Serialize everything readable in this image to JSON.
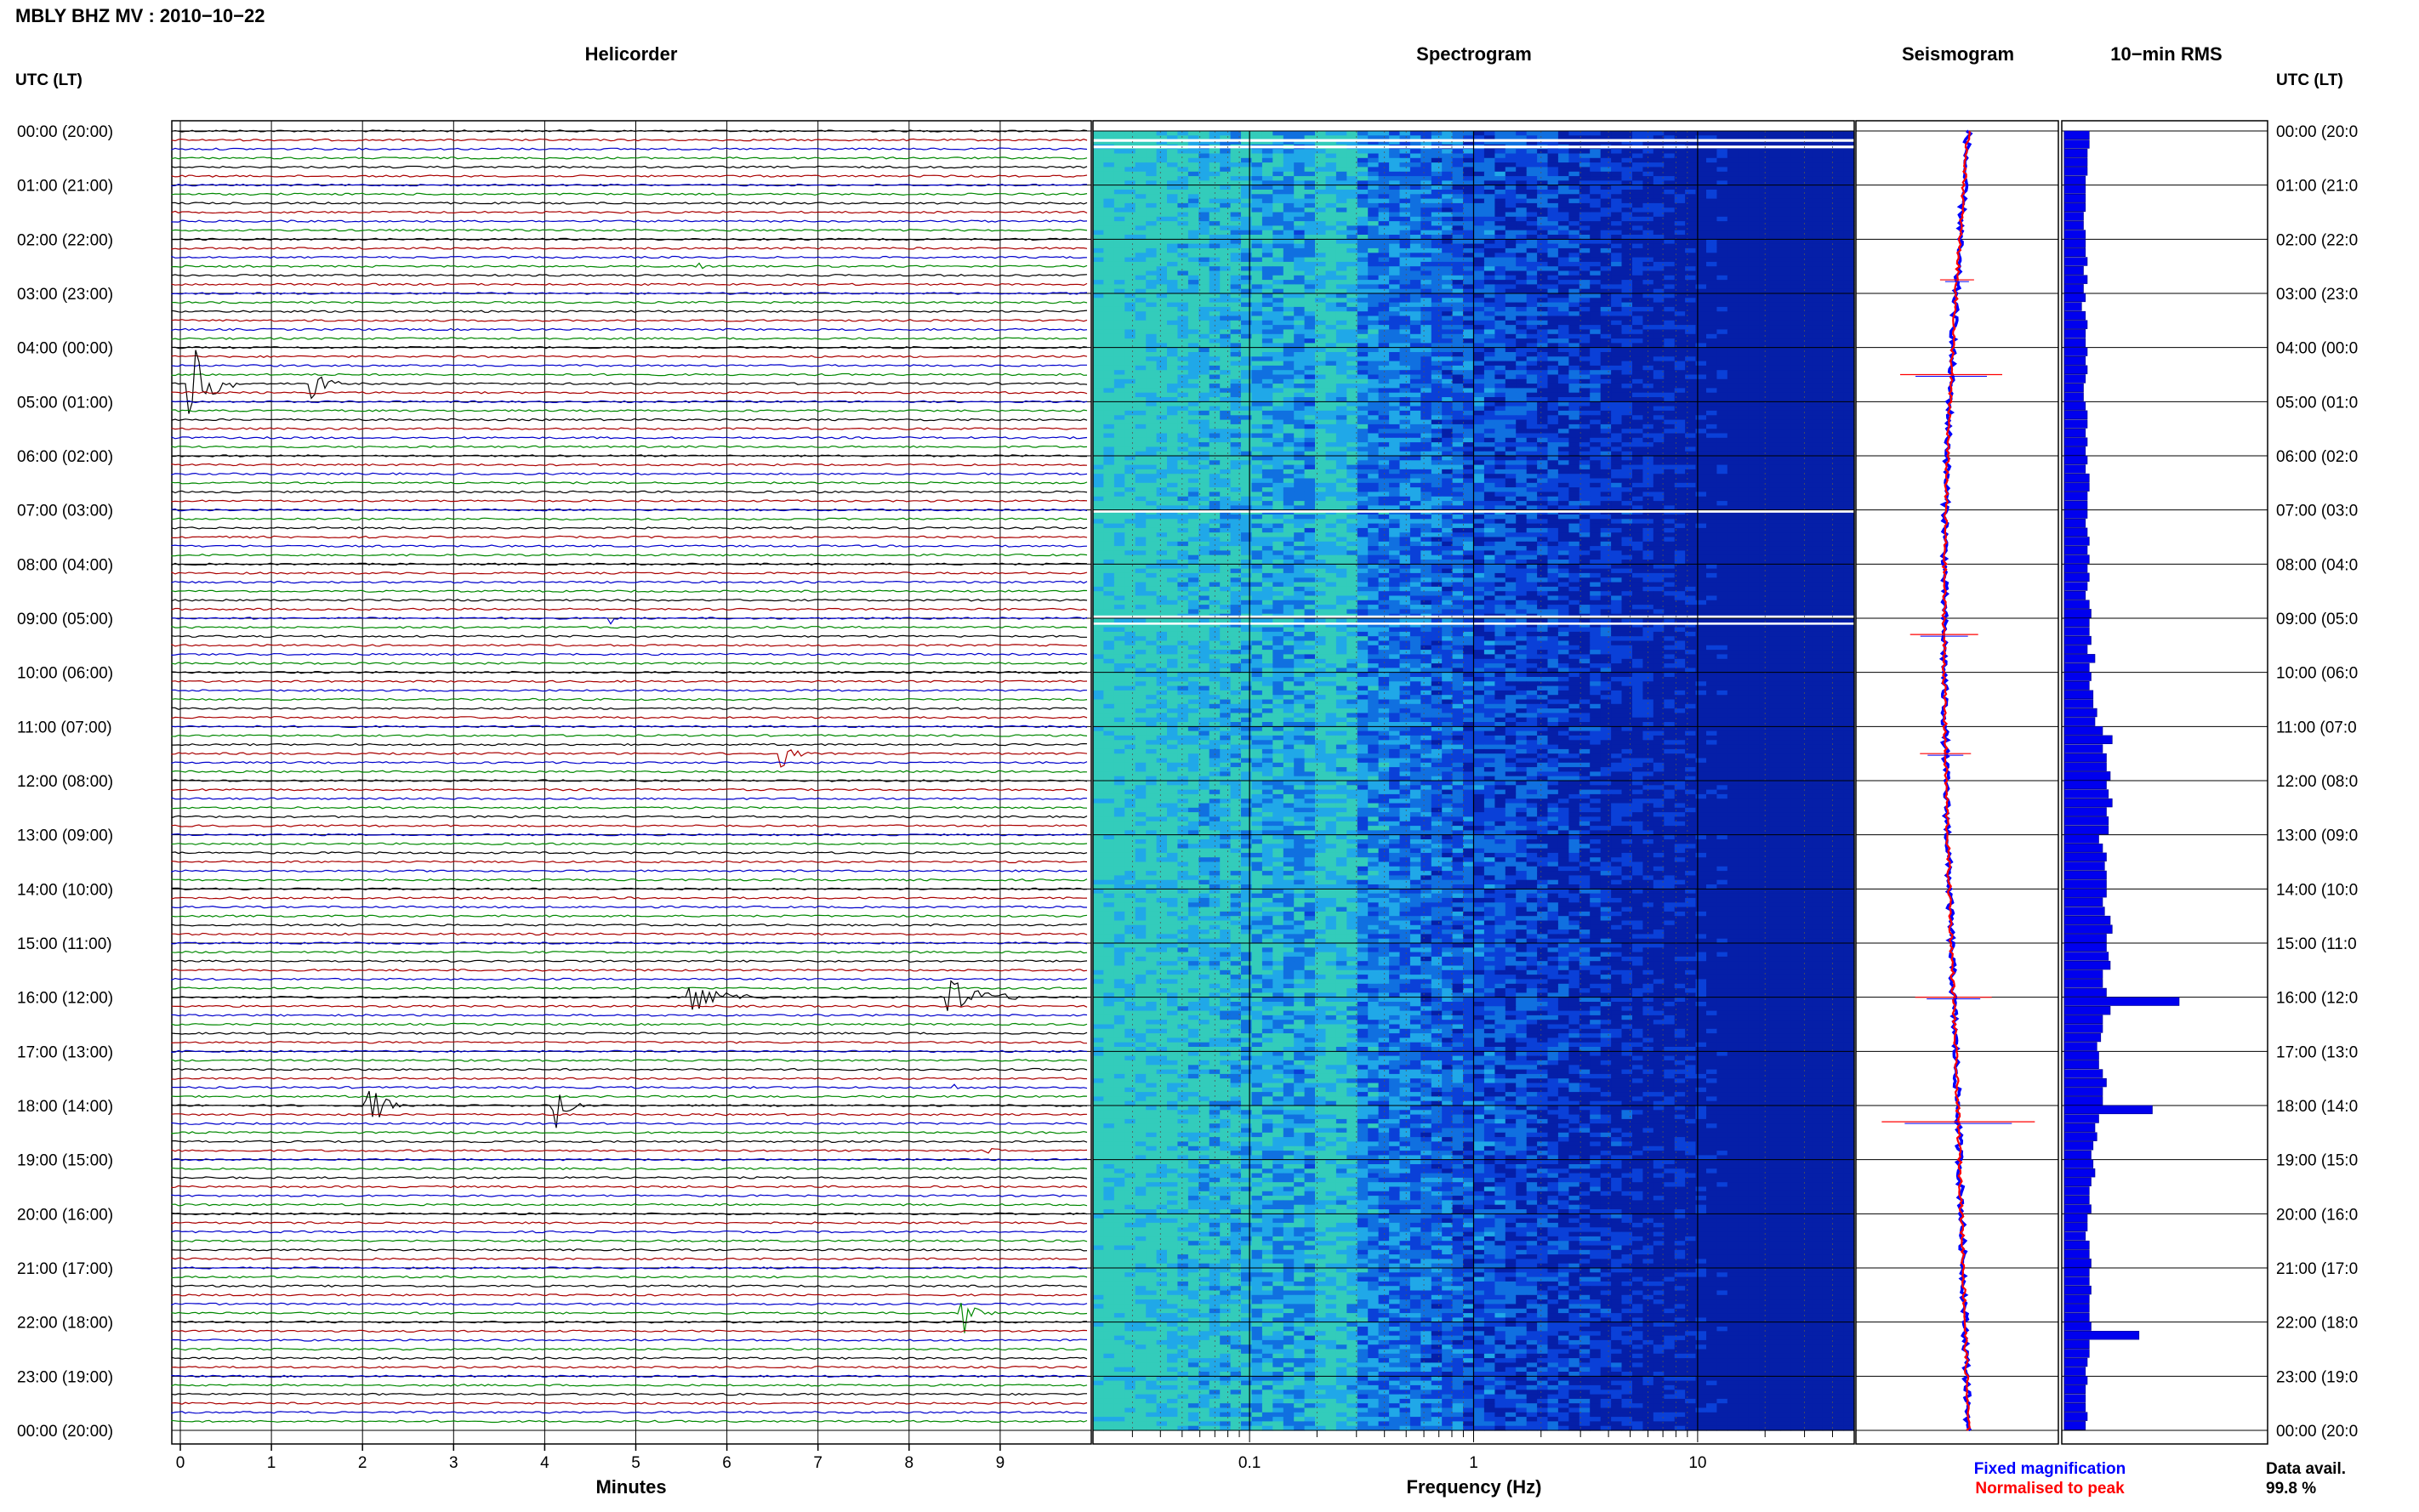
{
  "header": {
    "station_title": "MBLY BHZ MV : 2010−10−22"
  },
  "panels": {
    "helicorder": "Helicorder",
    "spectrogram": "Spectrogram",
    "seismogram": "Seismogram",
    "rms": "10−min RMS"
  },
  "axis": {
    "left_header": "UTC (LT)",
    "right_header": "UTC (LT)",
    "hour_labels": [
      "00:00 (20:00)",
      "01:00 (21:00)",
      "02:00 (22:00)",
      "03:00 (23:00)",
      "04:00 (00:00)",
      "05:00 (01:00)",
      "06:00 (02:00)",
      "07:00 (03:00)",
      "08:00 (04:00)",
      "09:00 (05:00)",
      "10:00 (06:00)",
      "11:00 (07:00)",
      "12:00 (08:00)",
      "13:00 (09:00)",
      "14:00 (10:00)",
      "15:00 (11:00)",
      "16:00 (12:00)",
      "17:00 (13:00)",
      "18:00 (14:00)",
      "19:00 (15:00)",
      "20:00 (16:00)",
      "21:00 (17:00)",
      "22:00 (18:00)",
      "23:00 (19:00)",
      "00:00 (20:00)"
    ],
    "right_hour_labels": [
      "00:00 (20:0",
      "01:00 (21:0",
      "02:00 (22:0",
      "03:00 (23:0",
      "04:00 (00:0",
      "05:00 (01:0",
      "06:00 (02:0",
      "07:00 (03:0",
      "08:00 (04:0",
      "09:00 (05:0",
      "10:00 (06:0",
      "11:00 (07:0",
      "12:00 (08:0",
      "13:00 (09:0",
      "14:00 (10:0",
      "15:00 (11:0",
      "16:00 (12:0",
      "17:00 (13:0",
      "18:00 (14:0",
      "19:00 (15:0",
      "20:00 (16:0",
      "21:00 (17:0",
      "22:00 (18:0",
      "23:00 (19:0",
      "00:00 (20:0"
    ],
    "minutes_label": "Minutes",
    "minute_ticks": [
      "0",
      "1",
      "2",
      "3",
      "4",
      "5",
      "6",
      "7",
      "8",
      "9"
    ],
    "frequency_label": "Frequency (Hz)",
    "frequency_ticks": [
      "0.1",
      "1",
      "10"
    ]
  },
  "legend": {
    "fixed": "Fixed magnification",
    "normalised": "Normalised to peak",
    "fixed_color": "#0000ff",
    "normalised_color": "#ff0000"
  },
  "data_avail": {
    "label": "Data avail.",
    "value": "99.8 %"
  },
  "chart_data": [
    {
      "type": "line",
      "panel": "Helicorder",
      "xlabel": "Minutes",
      "xlim": [
        0,
        10
      ],
      "rows_per_hour": 6,
      "trace_colors": [
        "#000000",
        "#aa0000",
        "#0000cc",
        "#008800"
      ],
      "events": [
        {
          "hour": 4,
          "row": 4,
          "minute": 0.1,
          "amp": 1.0,
          "dur": 0.5
        },
        {
          "hour": 4,
          "row": 4,
          "minute": 1.45,
          "amp": 0.45,
          "dur": 0.3
        },
        {
          "hour": 2,
          "row": 3,
          "minute": 5.7,
          "amp": 0.12,
          "dur": 0.1
        },
        {
          "hour": 9,
          "row": 0,
          "minute": 4.75,
          "amp": 0.2,
          "dur": 0.1
        },
        {
          "hour": 11,
          "row": 3,
          "minute": 6.6,
          "amp": 0.3,
          "dur": 0.3
        },
        {
          "hour": 16,
          "row": 0,
          "minute": 5.6,
          "amp": 0.3,
          "dur": 0.9
        },
        {
          "hour": 16,
          "row": 0,
          "minute": 8.45,
          "amp": 0.4,
          "dur": 0.9
        },
        {
          "hour": 18,
          "row": 0,
          "minute": 2.05,
          "amp": 0.6,
          "dur": 0.4
        },
        {
          "hour": 18,
          "row": 0,
          "minute": 4.1,
          "amp": 0.6,
          "dur": 0.35
        },
        {
          "hour": 17,
          "row": 4,
          "minute": 8.5,
          "amp": 0.15,
          "dur": 0.1
        },
        {
          "hour": 18,
          "row": 5,
          "minute": 8.9,
          "amp": 0.15,
          "dur": 0.15
        },
        {
          "hour": 21,
          "row": 5,
          "minute": 8.6,
          "amp": 0.45,
          "dur": 0.35
        }
      ]
    },
    {
      "type": "heatmap",
      "panel": "Spectrogram",
      "xlabel": "Frequency (Hz)",
      "x_scale": "log",
      "xlim": [
        0.02,
        50
      ],
      "ylim_hours": [
        0,
        24
      ],
      "colormap": [
        "#33ccbb",
        "#20a8e8",
        "#1070e0",
        "#0a40d8",
        "#051fa8"
      ]
    },
    {
      "type": "line",
      "panel": "Seismogram",
      "series": [
        {
          "name": "Fixed magnification",
          "color": "#0000ff"
        },
        {
          "name": "Normalised to peak",
          "color": "#ff0000"
        }
      ],
      "spikes_hours": [
        2.75,
        4.5,
        9.3,
        11.5,
        16.0,
        18.3
      ]
    },
    {
      "type": "bar",
      "panel": "10-min RMS",
      "orientation": "horizontal",
      "xlim": [
        0,
        1
      ],
      "bin_minutes": 10,
      "values": [
        0.13,
        0.13,
        0.12,
        0.12,
        0.12,
        0.11,
        0.11,
        0.11,
        0.11,
        0.1,
        0.1,
        0.11,
        0.11,
        0.11,
        0.12,
        0.1,
        0.12,
        0.1,
        0.11,
        0.09,
        0.11,
        0.12,
        0.11,
        0.11,
        0.12,
        0.11,
        0.12,
        0.11,
        0.1,
        0.1,
        0.11,
        0.12,
        0.12,
        0.11,
        0.12,
        0.11,
        0.12,
        0.11,
        0.13,
        0.13,
        0.12,
        0.12,
        0.12,
        0.11,
        0.12,
        0.13,
        0.12,
        0.13,
        0.12,
        0.13,
        0.12,
        0.11,
        0.13,
        0.14,
        0.13,
        0.13,
        0.14,
        0.12,
        0.16,
        0.13,
        0.14,
        0.13,
        0.15,
        0.15,
        0.17,
        0.16,
        0.2,
        0.25,
        0.2,
        0.22,
        0.22,
        0.24,
        0.22,
        0.23,
        0.25,
        0.22,
        0.23,
        0.23,
        0.18,
        0.2,
        0.22,
        0.21,
        0.22,
        0.22,
        0.22,
        0.2,
        0.21,
        0.24,
        0.25,
        0.22,
        0.22,
        0.23,
        0.24,
        0.2,
        0.2,
        0.22,
        0.6,
        0.24,
        0.2,
        0.2,
        0.19,
        0.17,
        0.18,
        0.18,
        0.2,
        0.22,
        0.2,
        0.2,
        0.46,
        0.18,
        0.16,
        0.17,
        0.15,
        0.14,
        0.15,
        0.16,
        0.14,
        0.13,
        0.13,
        0.14,
        0.12,
        0.12,
        0.11,
        0.13,
        0.13,
        0.14,
        0.13,
        0.13,
        0.14,
        0.13,
        0.13,
        0.13,
        0.14,
        0.39,
        0.13,
        0.13,
        0.12,
        0.11,
        0.12,
        0.11,
        0.11,
        0.11,
        0.12,
        0.11
      ]
    }
  ]
}
